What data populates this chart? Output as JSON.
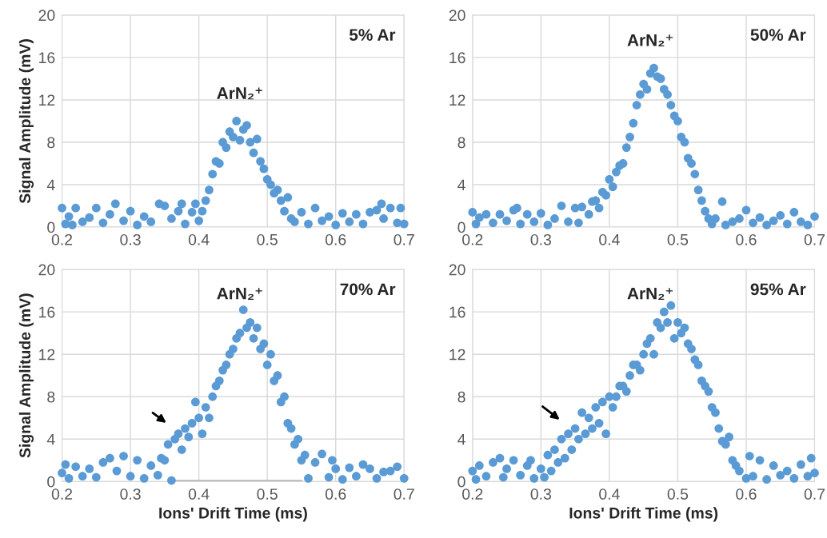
{
  "chart_data": [
    {
      "type": "scatter",
      "ylabel": "Signal Amplitude (mV)",
      "xlim": [
        0.2,
        0.7
      ],
      "ylim": [
        0,
        20
      ],
      "xticks": [
        0.2,
        0.3,
        0.4,
        0.5,
        0.6,
        0.7
      ],
      "yticks": [
        0,
        4,
        8,
        12,
        16,
        20
      ],
      "grid": true,
      "marker": "circle",
      "legend": false,
      "annotations": [
        "5% Ar",
        "ArN₂⁺"
      ],
      "series": [
        {
          "color": "#5b9bd5",
          "x": [
            0.2,
            0.205,
            0.21,
            0.215,
            0.22,
            0.23,
            0.24,
            0.25,
            0.26,
            0.27,
            0.278,
            0.29,
            0.3,
            0.31,
            0.32,
            0.33,
            0.342,
            0.35,
            0.36,
            0.37,
            0.375,
            0.38,
            0.39,
            0.395,
            0.4,
            0.405,
            0.41,
            0.415,
            0.42,
            0.425,
            0.43,
            0.435,
            0.44,
            0.445,
            0.45,
            0.455,
            0.46,
            0.465,
            0.47,
            0.475,
            0.48,
            0.485,
            0.49,
            0.495,
            0.5,
            0.505,
            0.51,
            0.515,
            0.52,
            0.525,
            0.53,
            0.535,
            0.54,
            0.55,
            0.56,
            0.57,
            0.58,
            0.59,
            0.6,
            0.61,
            0.62,
            0.63,
            0.64,
            0.65,
            0.66,
            0.667,
            0.67,
            0.68,
            0.69,
            0.695,
            0.7
          ],
          "values": [
            1.8,
            0.3,
            1.0,
            0.2,
            1.8,
            0.5,
            0.9,
            1.8,
            0.4,
            1.2,
            2.2,
            0.6,
            1.5,
            0.2,
            1.0,
            0.5,
            2.2,
            2.0,
            0.8,
            1.5,
            2.2,
            0.3,
            1.4,
            2.2,
            0.6,
            1.5,
            2.5,
            3.5,
            5.0,
            6.2,
            6.0,
            8.0,
            7.5,
            9.0,
            8.5,
            10.0,
            8.2,
            9.2,
            9.6,
            8.0,
            7.0,
            8.3,
            6.2,
            5.5,
            4.5,
            4.0,
            3.2,
            3.5,
            2.5,
            1.5,
            2.8,
            0.8,
            0.5,
            1.4,
            0.3,
            1.8,
            0.6,
            1.0,
            0.2,
            1.3,
            0.5,
            1.2,
            0.3,
            1.4,
            1.6,
            2.2,
            0.8,
            1.8,
            0.4,
            1.8,
            0.3
          ]
        }
      ]
    },
    {
      "type": "scatter",
      "xlim": [
        0.2,
        0.7
      ],
      "ylim": [
        0,
        20
      ],
      "xticks": [
        0.2,
        0.3,
        0.4,
        0.5,
        0.6,
        0.7
      ],
      "yticks": [
        0,
        4,
        8,
        12,
        16,
        20
      ],
      "grid": true,
      "marker": "circle",
      "legend": false,
      "annotations": [
        "50% Ar",
        "ArN₂⁺"
      ],
      "series": [
        {
          "color": "#5b9bd5",
          "x": [
            0.2,
            0.205,
            0.21,
            0.22,
            0.23,
            0.24,
            0.25,
            0.26,
            0.265,
            0.27,
            0.28,
            0.29,
            0.3,
            0.31,
            0.32,
            0.33,
            0.34,
            0.35,
            0.355,
            0.36,
            0.37,
            0.375,
            0.38,
            0.385,
            0.39,
            0.395,
            0.4,
            0.405,
            0.41,
            0.415,
            0.42,
            0.425,
            0.43,
            0.435,
            0.44,
            0.445,
            0.45,
            0.455,
            0.46,
            0.465,
            0.47,
            0.475,
            0.48,
            0.485,
            0.49,
            0.495,
            0.5,
            0.505,
            0.51,
            0.515,
            0.52,
            0.525,
            0.53,
            0.535,
            0.54,
            0.545,
            0.55,
            0.555,
            0.565,
            0.57,
            0.58,
            0.59,
            0.6,
            0.61,
            0.62,
            0.63,
            0.64,
            0.65,
            0.66,
            0.67,
            0.68,
            0.69,
            0.7
          ],
          "values": [
            1.4,
            0.3,
            0.9,
            1.2,
            0.4,
            1.2,
            0.6,
            1.6,
            1.8,
            0.3,
            1.2,
            0.5,
            1.3,
            0.2,
            0.8,
            2.0,
            0.5,
            1.8,
            0.4,
            1.9,
            1.2,
            2.4,
            2.5,
            1.8,
            3.3,
            3.0,
            4.5,
            3.8,
            5.2,
            5.8,
            6.0,
            7.5,
            8.5,
            9.8,
            11.5,
            12.5,
            13.5,
            13.0,
            14.5,
            15.0,
            14.2,
            14.0,
            13.0,
            12.5,
            11.5,
            10.5,
            10.0,
            8.5,
            8.0,
            6.5,
            6.0,
            5.0,
            3.5,
            2.5,
            1.5,
            0.8,
            0.3,
            0.8,
            2.4,
            0.2,
            0.5,
            0.8,
            1.6,
            0.4,
            0.9,
            0.2,
            0.6,
            1.1,
            0.3,
            1.4,
            0.5,
            0.2,
            1.0
          ]
        }
      ]
    },
    {
      "type": "scatter",
      "ylabel": "Signal Amplitude (mV)",
      "xlabel": "Ions' Drift Time (ms)",
      "xlim": [
        0.2,
        0.7
      ],
      "ylim": [
        0,
        20
      ],
      "xticks": [
        0.2,
        0.3,
        0.4,
        0.5,
        0.6,
        0.7
      ],
      "yticks": [
        0,
        4,
        8,
        12,
        16,
        20
      ],
      "grid": true,
      "marker": "circle",
      "legend": false,
      "annotations": [
        "70% Ar",
        "ArN₂⁺"
      ],
      "series": [
        {
          "type": "line",
          "marker": "none",
          "color": "#a5a5a5",
          "x": [
            0.36,
            0.55
          ],
          "values": [
            0,
            0
          ]
        },
        {
          "color": "#5b9bd5",
          "x": [
            0.2,
            0.205,
            0.21,
            0.22,
            0.23,
            0.24,
            0.25,
            0.26,
            0.27,
            0.28,
            0.29,
            0.3,
            0.31,
            0.32,
            0.33,
            0.34,
            0.345,
            0.35,
            0.355,
            0.36,
            0.365,
            0.37,
            0.375,
            0.38,
            0.385,
            0.39,
            0.395,
            0.4,
            0.405,
            0.41,
            0.415,
            0.42,
            0.425,
            0.43,
            0.435,
            0.44,
            0.445,
            0.45,
            0.455,
            0.46,
            0.465,
            0.47,
            0.475,
            0.48,
            0.485,
            0.49,
            0.495,
            0.5,
            0.505,
            0.51,
            0.515,
            0.52,
            0.525,
            0.53,
            0.535,
            0.54,
            0.545,
            0.55,
            0.555,
            0.56,
            0.57,
            0.58,
            0.59,
            0.595,
            0.6,
            0.61,
            0.62,
            0.63,
            0.64,
            0.65,
            0.66,
            0.67,
            0.68,
            0.69,
            0.7
          ],
          "values": [
            0.8,
            1.6,
            0.3,
            1.4,
            0.5,
            1.2,
            0.4,
            1.8,
            2.2,
            1.0,
            2.4,
            0.5,
            2.0,
            0.3,
            1.5,
            0.6,
            2.2,
            2.0,
            3.5,
            0.1,
            4.0,
            4.5,
            3.0,
            5.0,
            4.2,
            5.5,
            7.5,
            6.0,
            4.5,
            7.0,
            6.0,
            8.0,
            9.0,
            9.5,
            10.5,
            11.0,
            12.0,
            12.5,
            13.5,
            14.0,
            16.2,
            14.5,
            15.0,
            13.5,
            14.5,
            12.5,
            13.0,
            11.0,
            12.0,
            9.5,
            10.0,
            7.5,
            8.0,
            5.5,
            5.0,
            3.5,
            4.0,
            2.0,
            2.5,
            0.3,
            1.8,
            2.6,
            0.4,
            2.0,
            1.2,
            0.2,
            1.3,
            0.5,
            1.6,
            1.2,
            0.3,
            0.9,
            1.0,
            1.4,
            0.3
          ]
        }
      ]
    },
    {
      "type": "scatter",
      "xlabel": "Ions' Drift Time (ms)",
      "xlim": [
        0.2,
        0.7
      ],
      "ylim": [
        0,
        20
      ],
      "xticks": [
        0.2,
        0.3,
        0.4,
        0.5,
        0.6,
        0.7
      ],
      "yticks": [
        0,
        4,
        8,
        12,
        16,
        20
      ],
      "grid": true,
      "marker": "circle",
      "legend": false,
      "annotations": [
        "95% Ar",
        "ArN₂⁺"
      ],
      "series": [
        {
          "color": "#5b9bd5",
          "x": [
            0.2,
            0.205,
            0.21,
            0.22,
            0.23,
            0.24,
            0.245,
            0.25,
            0.26,
            0.27,
            0.28,
            0.285,
            0.29,
            0.3,
            0.305,
            0.31,
            0.315,
            0.32,
            0.325,
            0.33,
            0.335,
            0.34,
            0.345,
            0.35,
            0.355,
            0.36,
            0.365,
            0.37,
            0.375,
            0.38,
            0.385,
            0.39,
            0.395,
            0.4,
            0.405,
            0.41,
            0.415,
            0.42,
            0.425,
            0.43,
            0.435,
            0.44,
            0.445,
            0.45,
            0.455,
            0.46,
            0.465,
            0.47,
            0.475,
            0.48,
            0.485,
            0.49,
            0.495,
            0.5,
            0.505,
            0.51,
            0.515,
            0.52,
            0.525,
            0.53,
            0.535,
            0.54,
            0.545,
            0.55,
            0.555,
            0.56,
            0.565,
            0.57,
            0.575,
            0.58,
            0.585,
            0.59,
            0.6,
            0.605,
            0.61,
            0.62,
            0.63,
            0.64,
            0.65,
            0.66,
            0.67,
            0.68,
            0.69,
            0.695,
            0.7
          ],
          "values": [
            1.0,
            0.2,
            1.5,
            0.5,
            1.8,
            2.2,
            0.4,
            1.2,
            2.0,
            0.6,
            1.5,
            2.0,
            0.3,
            1.2,
            0.4,
            2.5,
            1.0,
            3.0,
            1.8,
            4.0,
            2.2,
            4.5,
            3.0,
            5.0,
            4.0,
            6.5,
            4.5,
            6.0,
            5.0,
            7.0,
            5.5,
            7.5,
            4.5,
            8.0,
            7.0,
            8.0,
            9.0,
            9.0,
            8.5,
            10.0,
            11.0,
            11.0,
            10.5,
            12.0,
            13.0,
            13.5,
            12.0,
            15.0,
            14.5,
            16.0,
            15.0,
            16.6,
            13.5,
            15.0,
            14.0,
            14.5,
            13.0,
            12.5,
            11.5,
            11.0,
            9.5,
            9.0,
            8.5,
            7.0,
            6.5,
            5.0,
            3.8,
            3.5,
            4.2,
            2.0,
            1.5,
            1.0,
            0.3,
            2.4,
            0.5,
            2.0,
            0.2,
            1.5,
            0.6,
            1.0,
            0.3,
            1.6,
            0.5,
            2.2,
            0.8
          ]
        }
      ]
    }
  ]
}
